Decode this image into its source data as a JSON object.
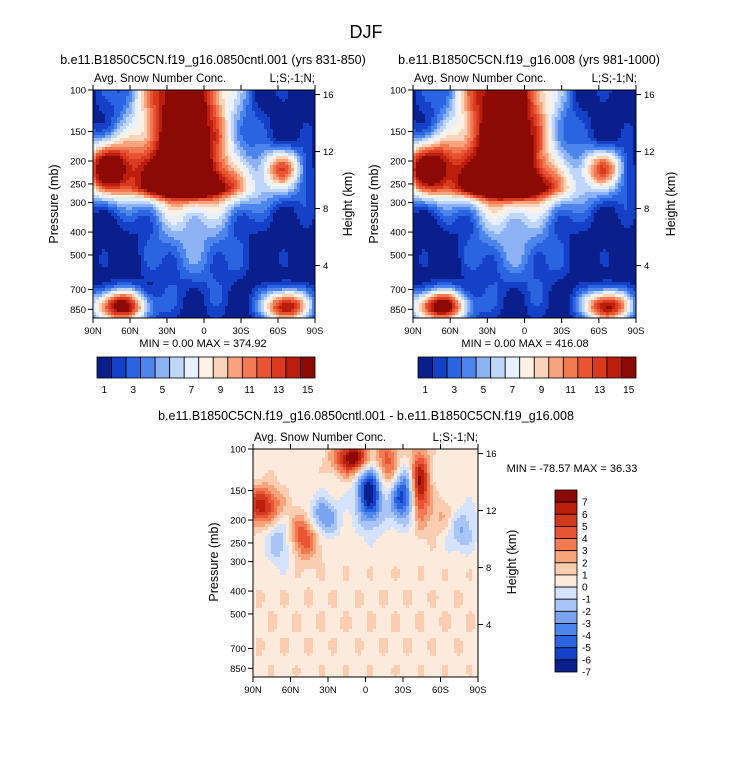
{
  "page_title": "DJF",
  "colors": {
    "ten": [
      "#0b1f8c",
      "#1541c8",
      "#2b64e0",
      "#4c86ec",
      "#8db2f4",
      "#bfd6f9",
      "#e8f0fd",
      "#fdf0e4",
      "#fbd2ba",
      "#f7a47d",
      "#f27a52",
      "#e85434",
      "#d93a1f",
      "#bb1e0c",
      "#8c0a06"
    ],
    "diff": [
      "#0b1f8c",
      "#1541c8",
      "#2b64e0",
      "#4c86ec",
      "#7aa3f0",
      "#a9c4f6",
      "#d4e3fb",
      "#fcebdc",
      "#fbcdb0",
      "#f7a47d",
      "#f27a52",
      "#e85434",
      "#d13a1f",
      "#bb1e0c",
      "#8c0a06"
    ]
  },
  "chart_data": [
    {
      "type": "heatmap",
      "id": "panel-a",
      "title": "b.e11.B1850C5CN.f19_g16.0850cntl.001 (yrs 831-850)",
      "left_string": "Avg. Snow Number Conc.",
      "right_string": "L;S;-1;N;",
      "xlabel": "",
      "ylabel": "Pressure (mb)",
      "ylabel_right": "Height (km)",
      "x_ticks": [
        "90N",
        "60N",
        "30N",
        "0",
        "30S",
        "60S",
        "90S"
      ],
      "y_ticks": [
        "100",
        "150",
        "200",
        "250",
        "300",
        "400",
        "500",
        "700",
        "850"
      ],
      "y_ticks_right": [
        "16",
        "12",
        "8",
        "4"
      ],
      "min_max_text": "MIN =   0.00   MAX = 374.92",
      "min": 0.0,
      "max": 374.92,
      "colorbar": {
        "orientation": "horizontal",
        "labels": [
          "1",
          "3",
          "5",
          "7",
          "9",
          "11",
          "13",
          "15"
        ]
      }
    },
    {
      "type": "heatmap",
      "id": "panel-b",
      "title": "b.e11.B1850C5CN.f19_g16.008 (yrs 981-1000)",
      "left_string": "Avg. Snow Number Conc.",
      "right_string": "L;S;-1;N;",
      "xlabel": "",
      "ylabel": "Pressure (mb)",
      "ylabel_right": "Height (km)",
      "x_ticks": [
        "90N",
        "60N",
        "30N",
        "0",
        "30S",
        "60S",
        "90S"
      ],
      "y_ticks": [
        "100",
        "150",
        "200",
        "250",
        "300",
        "400",
        "500",
        "700",
        "850"
      ],
      "y_ticks_right": [
        "16",
        "12",
        "8",
        "4"
      ],
      "min_max_text": "MIN =   0.00   MAX = 416.08",
      "min": 0.0,
      "max": 416.08,
      "colorbar": {
        "orientation": "horizontal",
        "labels": [
          "1",
          "3",
          "5",
          "7",
          "9",
          "11",
          "13",
          "15"
        ]
      }
    },
    {
      "type": "heatmap",
      "id": "panel-c",
      "title": "b.e11.B1850C5CN.f19_g16.0850cntl.001 - b.e11.B1850C5CN.f19_g16.008",
      "left_string": "Avg. Snow Number Conc.",
      "right_string": "L;S;-1;N;",
      "xlabel": "",
      "ylabel": "Pressure (mb)",
      "ylabel_right": "Height (km)",
      "x_ticks": [
        "90N",
        "60N",
        "30N",
        "0",
        "30S",
        "60S",
        "90S"
      ],
      "y_ticks": [
        "100",
        "150",
        "200",
        "250",
        "300",
        "400",
        "500",
        "700",
        "850"
      ],
      "y_ticks_right": [
        "16",
        "12",
        "8",
        "4"
      ],
      "min_max_text": "MIN = -78.57  MAX =  36.33",
      "min": -78.57,
      "max": 36.33,
      "colorbar": {
        "orientation": "vertical",
        "labels": [
          "7",
          "6",
          "5",
          "4",
          "3",
          "2",
          "1",
          "0",
          "-1",
          "-2",
          "-3",
          "-4",
          "-5",
          "-6",
          "-7"
        ]
      }
    }
  ]
}
